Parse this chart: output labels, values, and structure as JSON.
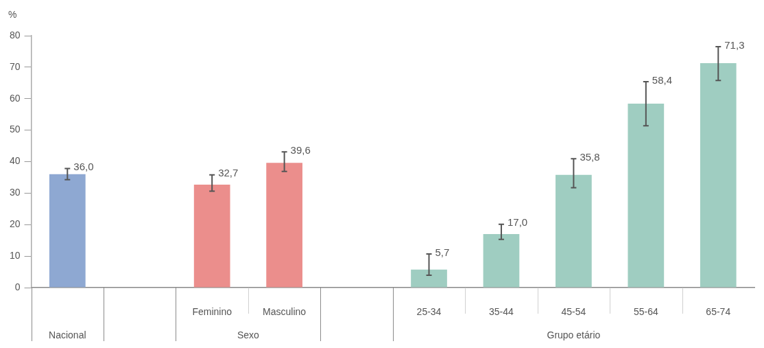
{
  "chart_data": {
    "type": "bar",
    "ylabel": "%",
    "categories": [
      null,
      null,
      "Feminino",
      "Masculino",
      null,
      "25-34",
      "35-44",
      "45-54",
      "55-64",
      "65-74"
    ],
    "values": [
      36.0,
      null,
      32.7,
      39.6,
      null,
      5.7,
      17.0,
      35.8,
      58.4,
      71.3
    ],
    "colors": [
      "#8ea8d2",
      null,
      "#eb8e8c",
      "#eb8e8c",
      null,
      "#9fcdc1",
      "#9fcdc1",
      "#9fcdc1",
      "#9fcdc1",
      "#9fcdc1"
    ],
    "errors": [
      [
        34.3,
        37.8
      ],
      null,
      [
        30.6,
        35.8
      ],
      [
        36.9,
        43.1
      ],
      null,
      [
        3.9,
        10.7
      ],
      [
        15.3,
        20.1
      ],
      [
        31.7,
        40.9
      ],
      [
        51.4,
        65.4
      ],
      [
        65.8,
        76.5
      ]
    ],
    "value_labels": [
      "36,0",
      null,
      "32,7",
      "39,6",
      null,
      "5,7",
      "17,0",
      "35,8",
      "58,4",
      "71,3"
    ],
    "annotations": [
      "Nacional",
      "Sexo",
      "Grupo etário"
    ],
    "ylim": [
      0,
      80
    ],
    "yticks": [
      0,
      10,
      20,
      30,
      40,
      50,
      60,
      70,
      80
    ],
    "grid": false,
    "legend": false
  }
}
